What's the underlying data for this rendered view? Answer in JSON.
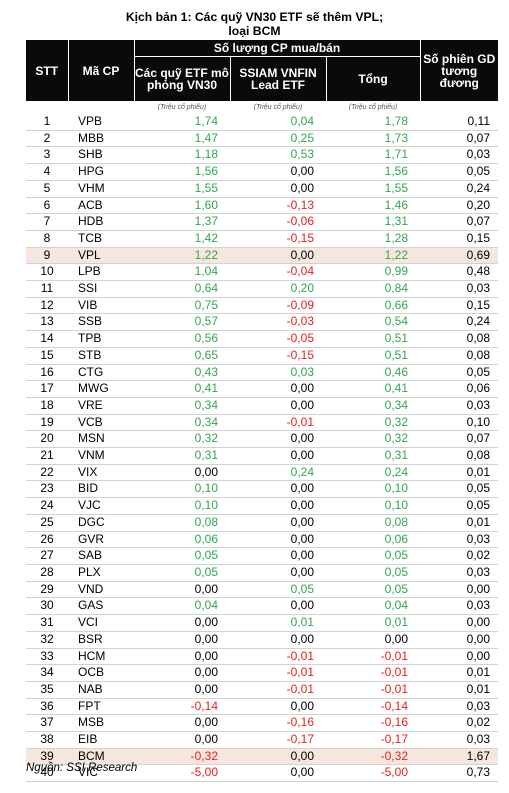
{
  "title": {
    "line1": "Kịch bản 1: Các quỹ VN30 ETF sẽ thêm VPL;",
    "line2": "loại BCM"
  },
  "table": {
    "headers": {
      "stt": "STT",
      "code": "Mã CP",
      "group": "Số lượng CP mua/bán",
      "etf_vn30": "Các quỹ ETF mô phỏng VN30",
      "ssiam": "SSIAM VNFIN Lead ETF",
      "total": "Tổng",
      "sessions": "Số phiên GD tương đương"
    },
    "unit_label": "(Triệu cổ phiếu)",
    "highlight_color": "#f6e7de",
    "positive_color": "#2fa84f",
    "negative_color": "#e8211d",
    "rows": [
      {
        "stt": "1",
        "code": "VPB",
        "etf": "1,74",
        "ssiam": "0,04",
        "total": "1,78",
        "sessions": "0,11"
      },
      {
        "stt": "2",
        "code": "MBB",
        "etf": "1,47",
        "ssiam": "0,25",
        "total": "1,73",
        "sessions": "0,07"
      },
      {
        "stt": "3",
        "code": "SHB",
        "etf": "1,18",
        "ssiam": "0,53",
        "total": "1,71",
        "sessions": "0,03"
      },
      {
        "stt": "4",
        "code": "HPG",
        "etf": "1,56",
        "ssiam": "0,00",
        "total": "1,56",
        "sessions": "0,05"
      },
      {
        "stt": "5",
        "code": "VHM",
        "etf": "1,55",
        "ssiam": "0,00",
        "total": "1,55",
        "sessions": "0,24"
      },
      {
        "stt": "6",
        "code": "ACB",
        "etf": "1,60",
        "ssiam": "-0,13",
        "total": "1,46",
        "sessions": "0,20"
      },
      {
        "stt": "7",
        "code": "HDB",
        "etf": "1,37",
        "ssiam": "-0,06",
        "total": "1,31",
        "sessions": "0,07"
      },
      {
        "stt": "8",
        "code": "TCB",
        "etf": "1,42",
        "ssiam": "-0,15",
        "total": "1,28",
        "sessions": "0,15"
      },
      {
        "stt": "9",
        "code": "VPL",
        "etf": "1,22",
        "ssiam": "0,00",
        "total": "1,22",
        "sessions": "0,69",
        "highlight": true
      },
      {
        "stt": "10",
        "code": "LPB",
        "etf": "1,04",
        "ssiam": "-0,04",
        "total": "0,99",
        "sessions": "0,48"
      },
      {
        "stt": "11",
        "code": "SSI",
        "etf": "0,64",
        "ssiam": "0,20",
        "total": "0,84",
        "sessions": "0,03"
      },
      {
        "stt": "12",
        "code": "VIB",
        "etf": "0,75",
        "ssiam": "-0,09",
        "total": "0,66",
        "sessions": "0,15"
      },
      {
        "stt": "13",
        "code": "SSB",
        "etf": "0,57",
        "ssiam": "-0,03",
        "total": "0,54",
        "sessions": "0,24"
      },
      {
        "stt": "14",
        "code": "TPB",
        "etf": "0,56",
        "ssiam": "-0,05",
        "total": "0,51",
        "sessions": "0,08"
      },
      {
        "stt": "15",
        "code": "STB",
        "etf": "0,65",
        "ssiam": "-0,15",
        "total": "0,51",
        "sessions": "0,08"
      },
      {
        "stt": "16",
        "code": "CTG",
        "etf": "0,43",
        "ssiam": "0,03",
        "total": "0,46",
        "sessions": "0,05"
      },
      {
        "stt": "17",
        "code": "MWG",
        "etf": "0,41",
        "ssiam": "0,00",
        "total": "0,41",
        "sessions": "0,06"
      },
      {
        "stt": "18",
        "code": "VRE",
        "etf": "0,34",
        "ssiam": "0,00",
        "total": "0,34",
        "sessions": "0,03"
      },
      {
        "stt": "19",
        "code": "VCB",
        "etf": "0,34",
        "ssiam": "-0,01",
        "total": "0,32",
        "sessions": "0,10"
      },
      {
        "stt": "20",
        "code": "MSN",
        "etf": "0,32",
        "ssiam": "0,00",
        "total": "0,32",
        "sessions": "0,07"
      },
      {
        "stt": "21",
        "code": "VNM",
        "etf": "0,31",
        "ssiam": "0,00",
        "total": "0,31",
        "sessions": "0,08"
      },
      {
        "stt": "22",
        "code": "VIX",
        "etf": "0,00",
        "ssiam": "0,24",
        "total": "0,24",
        "sessions": "0,01"
      },
      {
        "stt": "23",
        "code": "BID",
        "etf": "0,10",
        "ssiam": "0,00",
        "total": "0,10",
        "sessions": "0,05"
      },
      {
        "stt": "24",
        "code": "VJC",
        "etf": "0,10",
        "ssiam": "0,00",
        "total": "0,10",
        "sessions": "0,05"
      },
      {
        "stt": "25",
        "code": "DGC",
        "etf": "0,08",
        "ssiam": "0,00",
        "total": "0,08",
        "sessions": "0,01"
      },
      {
        "stt": "26",
        "code": "GVR",
        "etf": "0,06",
        "ssiam": "0,00",
        "total": "0,06",
        "sessions": "0,03"
      },
      {
        "stt": "27",
        "code": "SAB",
        "etf": "0,05",
        "ssiam": "0,00",
        "total": "0,05",
        "sessions": "0,02"
      },
      {
        "stt": "28",
        "code": "PLX",
        "etf": "0,05",
        "ssiam": "0,00",
        "total": "0,05",
        "sessions": "0,03"
      },
      {
        "stt": "29",
        "code": "VND",
        "etf": "0,00",
        "ssiam": "0,05",
        "total": "0,05",
        "sessions": "0,00"
      },
      {
        "stt": "30",
        "code": "GAS",
        "etf": "0,04",
        "ssiam": "0,00",
        "total": "0,04",
        "sessions": "0,03"
      },
      {
        "stt": "31",
        "code": "VCI",
        "etf": "0,00",
        "ssiam": "0,01",
        "total": "0,01",
        "sessions": "0,00"
      },
      {
        "stt": "32",
        "code": "BSR",
        "etf": "0,00",
        "ssiam": "0,00",
        "total": "0,00",
        "sessions": "0,00"
      },
      {
        "stt": "33",
        "code": "HCM",
        "etf": "0,00",
        "ssiam": "-0,01",
        "total": "-0,01",
        "sessions": "0,00"
      },
      {
        "stt": "34",
        "code": "OCB",
        "etf": "0,00",
        "ssiam": "-0,01",
        "total": "-0,01",
        "sessions": "0,01"
      },
      {
        "stt": "35",
        "code": "NAB",
        "etf": "0,00",
        "ssiam": "-0,01",
        "total": "-0,01",
        "sessions": "0,01"
      },
      {
        "stt": "36",
        "code": "FPT",
        "etf": "-0,14",
        "ssiam": "0,00",
        "total": "-0,14",
        "sessions": "0,03"
      },
      {
        "stt": "37",
        "code": "MSB",
        "etf": "0,00",
        "ssiam": "-0,16",
        "total": "-0,16",
        "sessions": "0,02"
      },
      {
        "stt": "38",
        "code": "EIB",
        "etf": "0,00",
        "ssiam": "-0,17",
        "total": "-0,17",
        "sessions": "0,03"
      },
      {
        "stt": "39",
        "code": "BCM",
        "etf": "-0,32",
        "ssiam": "0,00",
        "total": "-0,32",
        "sessions": "1,67",
        "highlight": true
      },
      {
        "stt": "40",
        "code": "VIC",
        "etf": "-5,00",
        "ssiam": "0,00",
        "total": "-5,00",
        "sessions": "0,73"
      }
    ]
  },
  "source": "Nguồn: SSI Research"
}
